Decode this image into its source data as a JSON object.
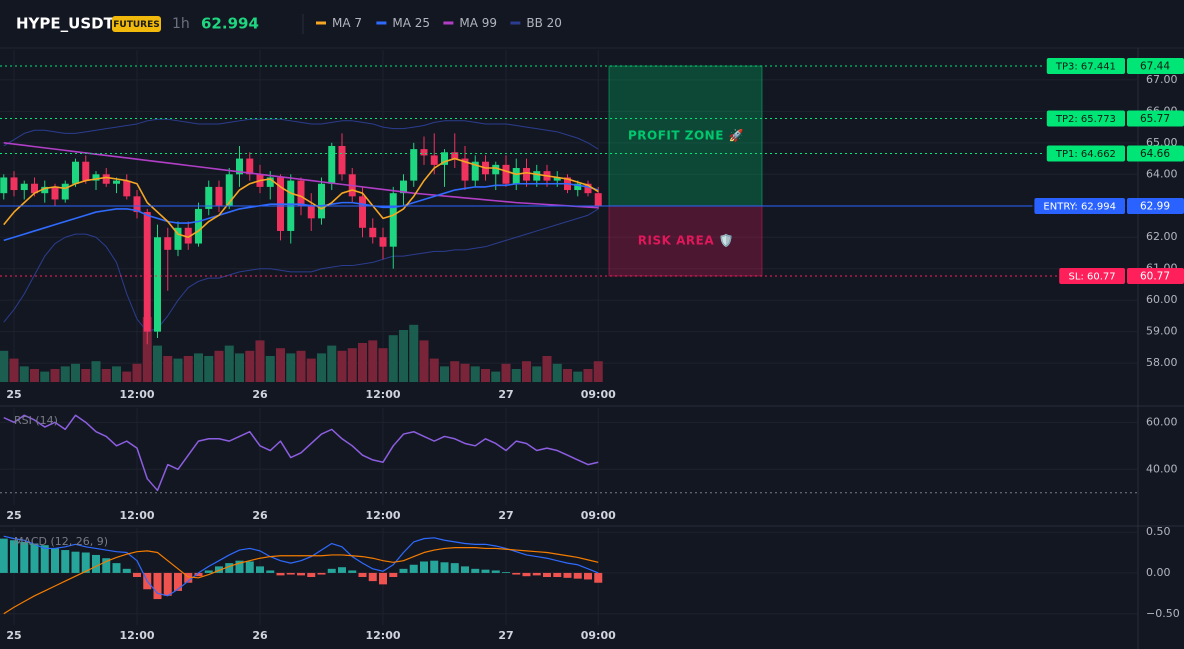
{
  "header": {
    "symbol": "HYPE_USDT",
    "badge": "FUTURES",
    "interval": "1h",
    "price": 62.994
  },
  "chart_data": [
    {
      "type": "candlestick",
      "categories": [
        null,
        "25",
        null,
        null,
        null,
        null,
        null,
        null,
        null,
        null,
        null,
        null,
        null,
        "12:00",
        null,
        null,
        null,
        null,
        null,
        null,
        null,
        null,
        null,
        null,
        null,
        "26",
        null,
        null,
        null,
        null,
        null,
        null,
        null,
        null,
        null,
        null,
        null,
        "12:00",
        null,
        null,
        null,
        null,
        null,
        null,
        null,
        null,
        null,
        null,
        null,
        "27",
        null,
        null,
        null,
        null,
        null,
        null,
        null,
        null,
        "09:00"
      ],
      "open": [
        63.4,
        63.9,
        63.5,
        63.7,
        63.4,
        63.6,
        63.2,
        63.7,
        64.4,
        63.8,
        64.0,
        63.7,
        63.8,
        63.3,
        62.8,
        59.0,
        62.0,
        61.6,
        62.3,
        61.8,
        62.9,
        63.6,
        63.0,
        64.0,
        64.5,
        64.0,
        63.6,
        63.9,
        62.2,
        63.8,
        63.0,
        62.6,
        63.7,
        64.9,
        64.0,
        63.3,
        62.3,
        62.0,
        61.7,
        63.4,
        63.8,
        64.8,
        64.6,
        64.3,
        64.7,
        64.5,
        63.8,
        64.4,
        64.0,
        64.3,
        63.7,
        64.2,
        63.8,
        64.1,
        63.8,
        63.9,
        63.5,
        63.7,
        63.4
      ],
      "high": [
        64.0,
        64.1,
        63.8,
        63.9,
        63.8,
        63.7,
        63.8,
        64.5,
        64.6,
        64.1,
        64.2,
        63.9,
        64.0,
        63.5,
        62.9,
        62.4,
        62.3,
        62.5,
        62.5,
        63.1,
        63.8,
        63.8,
        64.2,
        64.9,
        64.7,
        64.3,
        64.1,
        64.0,
        64.0,
        63.9,
        63.4,
        63.9,
        65.0,
        65.3,
        64.2,
        63.6,
        62.6,
        62.3,
        63.6,
        64.0,
        65.0,
        65.2,
        65.3,
        64.8,
        65.3,
        64.9,
        64.6,
        64.6,
        64.4,
        64.6,
        64.5,
        64.5,
        64.3,
        64.3,
        64.1,
        64.0,
        63.8,
        63.8,
        63.6
      ],
      "low": [
        63.2,
        63.3,
        63.2,
        63.3,
        63.1,
        63.0,
        63.1,
        63.6,
        63.7,
        63.5,
        63.6,
        63.4,
        63.2,
        62.6,
        58.6,
        58.8,
        60.3,
        61.4,
        61.6,
        61.7,
        62.7,
        62.8,
        62.9,
        63.6,
        63.8,
        63.4,
        63.2,
        61.9,
        61.8,
        62.7,
        62.2,
        62.4,
        63.5,
        63.8,
        63.1,
        62.0,
        61.8,
        61.3,
        61.0,
        63.0,
        63.6,
        64.3,
        64.0,
        63.6,
        64.2,
        63.5,
        63.6,
        63.8,
        63.5,
        63.6,
        63.5,
        63.6,
        63.6,
        63.6,
        63.6,
        63.4,
        63.3,
        63.3,
        62.9
      ],
      "close": [
        63.9,
        63.5,
        63.7,
        63.4,
        63.6,
        63.2,
        63.7,
        64.4,
        63.8,
        64.0,
        63.7,
        63.8,
        63.3,
        62.8,
        59.0,
        62.0,
        61.6,
        62.3,
        61.8,
        62.9,
        63.6,
        63.0,
        64.0,
        64.5,
        64.0,
        63.6,
        63.9,
        62.2,
        63.8,
        63.0,
        62.6,
        63.7,
        64.9,
        64.0,
        63.3,
        62.3,
        62.0,
        61.7,
        63.4,
        63.8,
        64.8,
        64.6,
        64.3,
        64.7,
        64.5,
        63.8,
        64.4,
        64.0,
        64.3,
        63.7,
        64.2,
        63.8,
        64.1,
        63.8,
        63.9,
        63.5,
        63.7,
        63.4,
        62.99
      ],
      "up_color": "#1ed67f",
      "down_color": "#f0325f",
      "series": [
        {
          "name": "MA 7",
          "color": "#f5a623",
          "values": [
            62.4,
            62.8,
            63.1,
            63.4,
            63.55,
            63.6,
            63.55,
            63.7,
            63.8,
            63.85,
            63.9,
            63.85,
            63.8,
            63.7,
            63.1,
            62.8,
            62.5,
            62.1,
            62.0,
            62.2,
            62.5,
            62.7,
            63.1,
            63.5,
            63.7,
            63.8,
            63.85,
            63.6,
            63.4,
            63.3,
            63.1,
            62.9,
            63.1,
            63.4,
            63.5,
            63.4,
            63.0,
            62.6,
            62.7,
            62.9,
            63.3,
            63.8,
            64.2,
            64.4,
            64.5,
            64.4,
            64.3,
            64.2,
            64.2,
            64.1,
            64.0,
            64.05,
            64.0,
            63.95,
            63.9,
            63.85,
            63.75,
            63.65,
            63.45
          ]
        },
        {
          "name": "MA 25",
          "color": "#2f6bff",
          "values": [
            61.9,
            62.0,
            62.1,
            62.2,
            62.3,
            62.4,
            62.5,
            62.6,
            62.7,
            62.8,
            62.85,
            62.9,
            62.9,
            62.85,
            62.7,
            62.6,
            62.5,
            62.45,
            62.45,
            62.5,
            62.6,
            62.7,
            62.8,
            62.9,
            62.95,
            63.0,
            63.05,
            63.05,
            63.05,
            63.05,
            63.0,
            63.0,
            63.05,
            63.1,
            63.1,
            63.05,
            63.0,
            62.95,
            62.95,
            63.0,
            63.1,
            63.2,
            63.3,
            63.4,
            63.5,
            63.55,
            63.6,
            63.6,
            63.65,
            63.65,
            63.7,
            63.7,
            63.7,
            63.7,
            63.7,
            63.7,
            63.65,
            63.6,
            63.5
          ]
        },
        {
          "name": "MA 99",
          "color": "#b13fc6",
          "values": [
            65.0,
            64.96,
            64.92,
            64.88,
            64.84,
            64.8,
            64.76,
            64.72,
            64.68,
            64.64,
            64.6,
            64.56,
            64.52,
            64.48,
            64.44,
            64.4,
            64.36,
            64.32,
            64.28,
            64.24,
            64.2,
            64.16,
            64.12,
            64.08,
            64.04,
            64.0,
            63.96,
            63.92,
            63.88,
            63.84,
            63.8,
            63.76,
            63.72,
            63.68,
            63.64,
            63.6,
            63.56,
            63.52,
            63.48,
            63.44,
            63.4,
            63.37,
            63.34,
            63.31,
            63.28,
            63.25,
            63.22,
            63.19,
            63.16,
            63.13,
            63.1,
            63.08,
            63.06,
            63.04,
            63.02,
            63.0,
            62.98,
            62.96,
            62.94
          ]
        }
      ],
      "bands": {
        "name": "BB 20",
        "color": "#2b3d8f",
        "upper": [
          64.9,
          65.1,
          65.3,
          65.4,
          65.4,
          65.35,
          65.3,
          65.3,
          65.35,
          65.4,
          65.45,
          65.5,
          65.55,
          65.6,
          65.7,
          65.75,
          65.75,
          65.7,
          65.65,
          65.6,
          65.6,
          65.6,
          65.65,
          65.7,
          65.75,
          65.75,
          65.75,
          65.75,
          65.7,
          65.65,
          65.6,
          65.6,
          65.65,
          65.7,
          65.7,
          65.65,
          65.6,
          65.5,
          65.45,
          65.45,
          65.5,
          65.55,
          65.65,
          65.7,
          65.7,
          65.7,
          65.65,
          65.6,
          65.6,
          65.6,
          65.55,
          65.5,
          65.45,
          65.4,
          65.35,
          65.25,
          65.15,
          65.0,
          64.8
        ],
        "lower": [
          59.3,
          59.7,
          60.2,
          60.8,
          61.4,
          61.8,
          62.0,
          62.1,
          62.1,
          62.0,
          61.7,
          61.2,
          60.2,
          59.4,
          59.0,
          59.1,
          59.5,
          60.0,
          60.4,
          60.6,
          60.7,
          60.7,
          60.8,
          60.9,
          60.95,
          61.0,
          61.0,
          60.95,
          60.9,
          60.9,
          60.9,
          61.0,
          61.05,
          61.1,
          61.1,
          61.15,
          61.2,
          61.3,
          61.4,
          61.4,
          61.45,
          61.5,
          61.55,
          61.55,
          61.6,
          61.6,
          61.65,
          61.7,
          61.8,
          61.9,
          62.0,
          62.1,
          62.2,
          62.3,
          62.4,
          62.5,
          62.6,
          62.7,
          62.9
        ]
      },
      "volume": {
        "up_color": "#1b5e4f",
        "down_color": "#7a2439",
        "values": [
          12,
          9,
          6,
          5,
          4,
          5,
          6,
          7,
          5,
          8,
          5,
          6,
          4,
          7,
          25,
          14,
          10,
          9,
          10,
          11,
          10,
          12,
          14,
          11,
          12,
          16,
          10,
          13,
          11,
          12,
          9,
          11,
          14,
          12,
          13,
          15,
          16,
          13,
          18,
          20,
          22,
          16,
          9,
          6,
          8,
          7,
          6,
          5,
          4,
          7,
          5,
          8,
          6,
          10,
          7,
          5,
          4,
          5,
          8
        ]
      },
      "ylim": [
        57.4,
        67.95
      ],
      "yticks": [
        {
          "value": 58,
          "label": "58.00"
        },
        {
          "value": 59,
          "label": "59.00"
        },
        {
          "value": 60,
          "label": "60.00"
        },
        {
          "value": 61,
          "label": "61.00"
        },
        {
          "value": 62,
          "label": "62.00"
        },
        {
          "value": 63,
          "label": "63.00"
        },
        {
          "value": 64,
          "label": "64.00"
        },
        {
          "value": 65,
          "label": "65.00"
        },
        {
          "value": 66,
          "label": "66.00"
        },
        {
          "value": 67,
          "label": "67.00"
        }
      ],
      "grid": true,
      "levels": [
        {
          "label": "TP3: 67.441",
          "value": 67.441,
          "axis_label": "67.44",
          "color": "#00e676",
          "style": "dotted"
        },
        {
          "label": "TP2: 65.773",
          "value": 65.773,
          "axis_label": "65.77",
          "color": "#00e676",
          "style": "dotted"
        },
        {
          "label": "TP1: 64.662",
          "value": 64.662,
          "axis_label": "64.66",
          "color": "#00e676",
          "style": "dotted"
        },
        {
          "label": "ENTRY: 62.994",
          "value": 62.994,
          "axis_label": "62.99",
          "color": "#2962ff",
          "style": "solid"
        },
        {
          "label": "SL: 60.77",
          "value": 60.77,
          "axis_label": "60.77",
          "color": "#ff1f5a",
          "style": "dotted"
        }
      ],
      "zones": [
        {
          "label": "PROFIT ZONE 🚀",
          "from": 62.994,
          "to": 67.441,
          "color": "#00c86e"
        },
        {
          "label": "RISK AREA 🛡️",
          "from": 60.77,
          "to": 62.994,
          "color": "#e0185a"
        }
      ]
    },
    {
      "type": "line",
      "label": "RSI (14)",
      "categories": [
        null,
        "25",
        null,
        null,
        null,
        null,
        null,
        null,
        null,
        null,
        null,
        null,
        null,
        "12:00",
        null,
        null,
        null,
        null,
        null,
        null,
        null,
        null,
        null,
        null,
        null,
        "26",
        null,
        null,
        null,
        null,
        null,
        null,
        null,
        null,
        null,
        null,
        null,
        "12:00",
        null,
        null,
        null,
        null,
        null,
        null,
        null,
        null,
        null,
        null,
        null,
        "27",
        null,
        null,
        null,
        null,
        null,
        null,
        null,
        null,
        "09:00"
      ],
      "line": {
        "color": "#8c5ee0",
        "values": [
          62,
          60,
          63,
          61,
          58,
          60,
          57,
          63,
          60,
          56,
          54,
          50,
          52,
          49,
          36,
          31,
          42,
          40,
          46,
          52,
          53,
          53,
          52,
          54,
          56,
          50,
          48,
          52,
          45,
          47,
          51,
          55,
          57,
          53,
          50,
          46,
          44,
          43,
          50,
          55,
          56,
          54,
          52,
          54,
          53,
          51,
          50,
          53,
          51,
          48,
          52,
          51,
          48,
          49,
          48,
          46,
          44,
          42,
          43
        ]
      },
      "hlines": [
        30
      ],
      "ylim": [
        24.8,
        66.1
      ],
      "yticks": [
        {
          "value": 40,
          "label": "40.00"
        },
        {
          "value": 60,
          "label": "60.00"
        }
      ]
    },
    {
      "type": "macd",
      "label": "MACD (12, 26, 9)",
      "categories": [
        null,
        "25",
        null,
        null,
        null,
        null,
        null,
        null,
        null,
        null,
        null,
        null,
        null,
        "12:00",
        null,
        null,
        null,
        null,
        null,
        null,
        null,
        null,
        null,
        null,
        null,
        "26",
        null,
        null,
        null,
        null,
        null,
        null,
        null,
        null,
        null,
        null,
        null,
        "12:00",
        null,
        null,
        null,
        null,
        null,
        null,
        null,
        null,
        null,
        null,
        null,
        "27",
        null,
        null,
        null,
        null,
        null,
        null,
        null,
        null,
        "09:00"
      ],
      "histogram": {
        "up_color": "#26a69a",
        "down_color": "#ef5350",
        "values": [
          0.42,
          0.4,
          0.38,
          0.36,
          0.34,
          0.3,
          0.28,
          0.26,
          0.25,
          0.22,
          0.18,
          0.12,
          0.05,
          -0.05,
          -0.2,
          -0.32,
          -0.28,
          -0.22,
          -0.12,
          -0.04,
          0.03,
          0.08,
          0.12,
          0.15,
          0.14,
          0.08,
          0.03,
          -0.03,
          -0.02,
          -0.03,
          -0.05,
          -0.02,
          0.05,
          0.07,
          0.03,
          -0.05,
          -0.1,
          -0.14,
          -0.05,
          0.05,
          0.1,
          0.14,
          0.15,
          0.13,
          0.12,
          0.08,
          0.05,
          0.04,
          0.03,
          0.01,
          -0.02,
          -0.04,
          -0.03,
          -0.05,
          -0.05,
          -0.06,
          -0.07,
          -0.08,
          -0.12
        ]
      },
      "macd_line": {
        "color": "#2f6bff",
        "values": [
          0.45,
          0.42,
          0.4,
          0.35,
          0.3,
          0.3,
          0.32,
          0.35,
          0.32,
          0.3,
          0.28,
          0.26,
          0.25,
          0.15,
          -0.1,
          -0.25,
          -0.28,
          -0.2,
          -0.1,
          0.0,
          0.08,
          0.15,
          0.22,
          0.28,
          0.3,
          0.27,
          0.2,
          0.15,
          0.12,
          0.15,
          0.2,
          0.28,
          0.36,
          0.32,
          0.2,
          0.12,
          0.05,
          0.02,
          0.1,
          0.25,
          0.38,
          0.42,
          0.43,
          0.4,
          0.38,
          0.36,
          0.35,
          0.35,
          0.33,
          0.3,
          0.26,
          0.22,
          0.2,
          0.18,
          0.15,
          0.12,
          0.1,
          0.05,
          0.0
        ]
      },
      "signal_line": {
        "color": "#f57c00",
        "values": [
          -0.5,
          -0.42,
          -0.35,
          -0.28,
          -0.22,
          -0.16,
          -0.1,
          -0.04,
          0.02,
          0.08,
          0.14,
          0.19,
          0.23,
          0.26,
          0.27,
          0.25,
          0.15,
          0.05,
          -0.05,
          -0.06,
          -0.02,
          0.03,
          0.08,
          0.12,
          0.15,
          0.18,
          0.2,
          0.21,
          0.21,
          0.21,
          0.21,
          0.21,
          0.22,
          0.22,
          0.21,
          0.2,
          0.18,
          0.15,
          0.13,
          0.15,
          0.2,
          0.25,
          0.28,
          0.3,
          0.31,
          0.31,
          0.31,
          0.3,
          0.3,
          0.29,
          0.28,
          0.27,
          0.26,
          0.25,
          0.23,
          0.21,
          0.19,
          0.16,
          0.13
        ]
      },
      "ylim": [
        -0.6375,
        0.55
      ],
      "yticks": [
        {
          "value": 0.5,
          "label": "0.50"
        },
        {
          "value": 0,
          "label": "0.00"
        },
        {
          "value": -0.5,
          "label": "−0.50"
        }
      ]
    }
  ]
}
